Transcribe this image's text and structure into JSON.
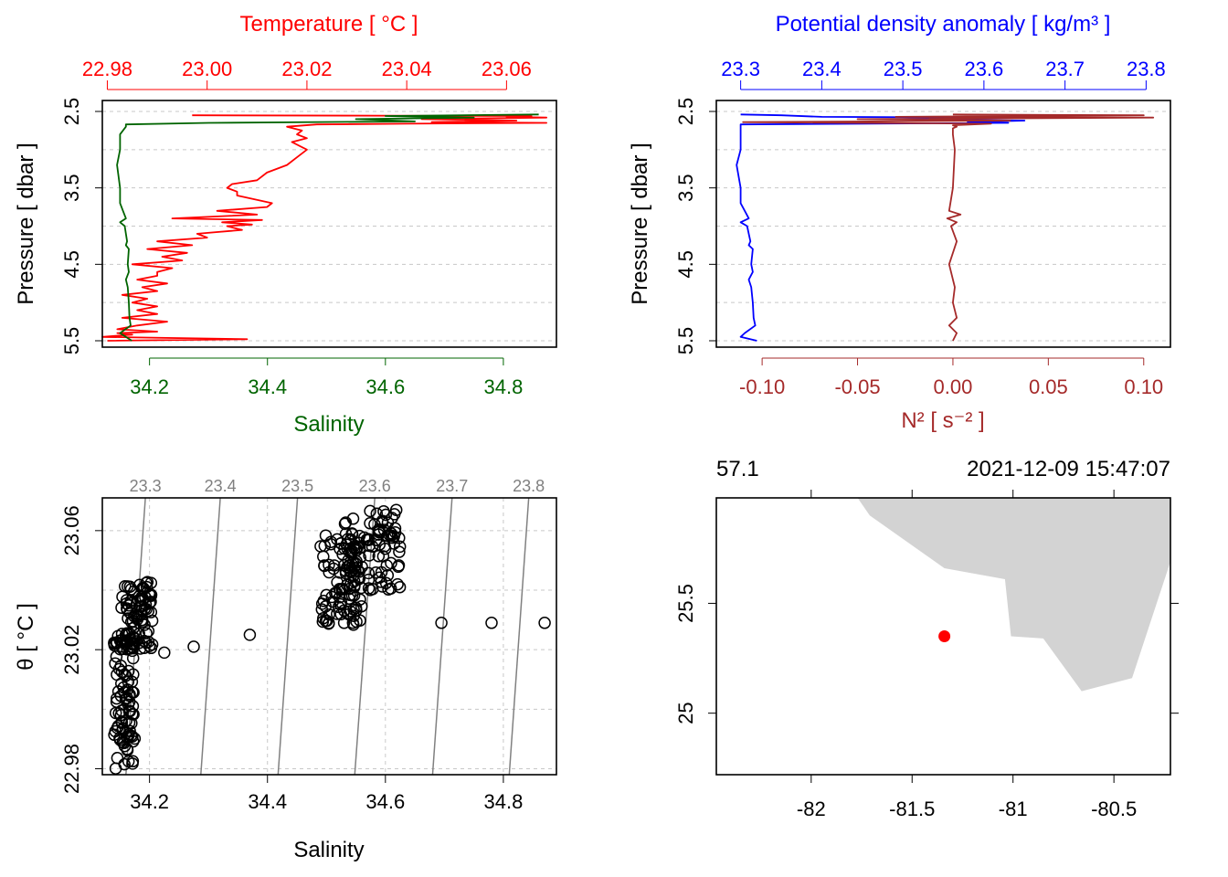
{
  "chart_data": [
    {
      "id": "ts-profile",
      "type": "line",
      "title_top": "Temperature [ °C ]",
      "xlabel_bottom": "Salinity",
      "ylabel": "Pressure [ dbar ]",
      "colors": {
        "temperature": "#ff0000",
        "salinity": "#006400",
        "grid": "#c8c8c8"
      },
      "ylim": [
        5.5,
        2.5
      ],
      "top_axis": {
        "lim": [
          22.979,
          23.07
        ],
        "ticks": [
          22.98,
          23.0,
          23.02,
          23.04,
          23.06
        ],
        "labels": [
          "22.98",
          "23.00",
          "23.02",
          "23.04",
          "23.06"
        ]
      },
      "bottom_axis": {
        "lim": [
          34.12,
          34.89
        ],
        "ticks": [
          34.2,
          34.4,
          34.6,
          34.8
        ],
        "labels": [
          "34.2",
          "34.4",
          "34.6",
          "34.8"
        ]
      },
      "yticks": [
        2.5,
        3.5,
        4.5,
        5.5
      ],
      "ytick_labels": [
        "2.5",
        "3.5",
        "4.5",
        "5.5"
      ],
      "ygrid": [
        2.5,
        3.0,
        3.5,
        4.0,
        4.5,
        5.0,
        5.5
      ],
      "series": [
        {
          "name": "Temperature",
          "axis": "top",
          "pressure": [
            2.55,
            2.56,
            2.57,
            2.58,
            2.6,
            2.62,
            2.64,
            2.65,
            2.66,
            2.67,
            2.7,
            2.75,
            2.8,
            2.85,
            2.9,
            3.0,
            3.1,
            3.2,
            3.3,
            3.4,
            3.45,
            3.5,
            3.55,
            3.6,
            3.7,
            3.75,
            3.8,
            3.85,
            3.9,
            3.92,
            3.95,
            3.98,
            4.0,
            4.05,
            4.1,
            4.15,
            4.2,
            4.25,
            4.3,
            4.35,
            4.4,
            4.45,
            4.5,
            4.55,
            4.6,
            4.65,
            4.7,
            4.75,
            4.8,
            4.85,
            4.9,
            4.95,
            5.0,
            5.05,
            5.1,
            5.15,
            5.2,
            5.25,
            5.3,
            5.35,
            5.38,
            5.4,
            5.42,
            5.45,
            5.48,
            5.5
          ],
          "values": [
            22.997,
            23.065,
            23.06,
            23.068,
            23.043,
            23.062,
            23.045,
            23.068,
            23.04,
            23.022,
            23.016,
            23.019,
            23.018,
            23.02,
            23.017,
            23.02,
            23.018,
            23.016,
            23.012,
            23.01,
            23.005,
            23.004,
            23.006,
            23.006,
            23.013,
            23.012,
            23.002,
            23.01,
            22.993,
            23.011,
            23.003,
            23.009,
            23.004,
            23.007,
            22.998,
            23.0,
            22.99,
            22.997,
            22.988,
            22.996,
            22.991,
            22.995,
            22.985,
            22.993,
            22.99,
            22.99,
            22.986,
            22.992,
            22.987,
            22.99,
            22.983,
            22.988,
            22.985,
            22.99,
            22.986,
            22.99,
            22.983,
            22.992,
            22.986,
            22.982,
            22.99,
            22.982,
            22.985,
            22.979,
            23.008,
            22.98
          ]
        },
        {
          "name": "Salinity",
          "axis": "bottom",
          "pressure": [
            2.54,
            2.56,
            2.58,
            2.6,
            2.63,
            2.65,
            2.67,
            2.7,
            2.8,
            3.0,
            3.2,
            3.5,
            3.7,
            3.8,
            3.9,
            3.95,
            4.0,
            4.1,
            4.2,
            4.25,
            4.3,
            4.5,
            4.6,
            4.7,
            4.8,
            5.0,
            5.2,
            5.3,
            5.4,
            5.5
          ],
          "values": [
            34.86,
            34.6,
            34.75,
            34.55,
            34.65,
            34.3,
            34.16,
            34.16,
            34.15,
            34.15,
            34.145,
            34.15,
            34.15,
            34.155,
            34.16,
            34.15,
            34.158,
            34.16,
            34.162,
            34.16,
            34.165,
            34.163,
            34.165,
            34.16,
            34.163,
            34.165,
            34.166,
            34.168,
            34.15,
            34.17
          ]
        }
      ]
    },
    {
      "id": "density-n2-profile",
      "type": "line",
      "title_top": "Potential density anomaly [ kg/m³ ]",
      "xlabel_bottom": "N² [ s⁻² ]",
      "ylabel": "Pressure [ dbar ]",
      "colors": {
        "density": "#0000ff",
        "n2": "#a52a2a",
        "grid": "#c8c8c8"
      },
      "ylim": [
        5.5,
        2.5
      ],
      "top_axis": {
        "lim": [
          23.27,
          23.83
        ],
        "ticks": [
          23.3,
          23.4,
          23.5,
          23.6,
          23.7,
          23.8
        ],
        "labels": [
          "23.3",
          "23.4",
          "23.5",
          "23.6",
          "23.7",
          "23.8"
        ]
      },
      "bottom_axis": {
        "lim": [
          -0.124,
          0.114
        ],
        "ticks": [
          -0.1,
          -0.05,
          0.0,
          0.05,
          0.1
        ],
        "labels": [
          "-0.10",
          "-0.05",
          "0.00",
          "0.05",
          "0.10"
        ]
      },
      "yticks": [
        2.5,
        3.5,
        4.5,
        5.5
      ],
      "ytick_labels": [
        "2.5",
        "3.5",
        "4.5",
        "5.5"
      ],
      "ygrid": [
        2.5,
        3.0,
        3.5,
        4.0,
        4.5,
        5.0,
        5.5
      ],
      "series": [
        {
          "name": "Potential density anomaly",
          "axis": "top",
          "pressure": [
            2.54,
            2.55,
            2.57,
            2.58,
            2.6,
            2.62,
            2.64,
            2.65,
            2.67,
            2.7,
            2.8,
            3.0,
            3.2,
            3.5,
            3.7,
            3.8,
            3.9,
            3.95,
            4.0,
            4.1,
            4.2,
            4.25,
            4.3,
            4.5,
            4.6,
            4.7,
            4.8,
            5.0,
            5.2,
            5.3,
            5.4,
            5.45,
            5.5
          ],
          "values": [
            23.3,
            23.35,
            23.4,
            23.6,
            23.5,
            23.65,
            23.58,
            23.63,
            23.3,
            23.3,
            23.3,
            23.3,
            23.295,
            23.3,
            23.3,
            23.305,
            23.31,
            23.3,
            23.308,
            23.31,
            23.312,
            23.31,
            23.315,
            23.313,
            23.315,
            23.31,
            23.313,
            23.315,
            23.316,
            23.318,
            23.305,
            23.3,
            23.32
          ]
        },
        {
          "name": "N²",
          "axis": "bottom",
          "pressure": [
            2.54,
            2.55,
            2.57,
            2.58,
            2.6,
            2.62,
            2.64,
            2.66,
            2.68,
            2.7,
            2.72,
            2.8,
            3.0,
            3.5,
            3.8,
            3.85,
            3.9,
            3.95,
            4.0,
            4.2,
            4.5,
            4.8,
            5.0,
            5.2,
            5.3,
            5.4,
            5.5
          ],
          "values": [
            0.0,
            0.1,
            -0.03,
            0.105,
            -0.05,
            0.03,
            -0.11,
            0.02,
            0.0,
            0.002,
            0.0,
            0.0,
            0.001,
            0.0,
            -0.002,
            0.004,
            -0.003,
            0.002,
            -0.001,
            0.002,
            -0.002,
            0.001,
            0.0,
            0.002,
            -0.002,
            0.002,
            0.0
          ]
        }
      ]
    },
    {
      "id": "ts-diagram",
      "type": "scatter",
      "xlabel": "Salinity",
      "ylabel": "θ [ °C ]",
      "colors": {
        "points": "#000000",
        "isopycnal": "#808080",
        "grid": "#c8c8c8"
      },
      "xlim": [
        34.12,
        34.89
      ],
      "ylim": [
        22.978,
        23.071
      ],
      "xticks": [
        34.2,
        34.4,
        34.6,
        34.8
      ],
      "xtick_labels": [
        "34.2",
        "34.4",
        "34.6",
        "34.8"
      ],
      "yticks": [
        22.98,
        23.02,
        23.06
      ],
      "ytick_labels": [
        "22.98",
        "23.02",
        "23.06"
      ],
      "ygrid": [
        22.98,
        23.0,
        23.02,
        23.04,
        23.06
      ],
      "isopycnals": [
        {
          "label": "23.3",
          "s_bottom": 34.16,
          "s_top": 34.193
        },
        {
          "label": "23.4",
          "s_bottom": 34.287,
          "s_top": 34.32
        },
        {
          "label": "23.5",
          "s_bottom": 34.418,
          "s_top": 34.451
        },
        {
          "label": "23.6",
          "s_bottom": 34.548,
          "s_top": 34.582
        },
        {
          "label": "23.7",
          "s_bottom": 34.68,
          "s_top": 34.713
        },
        {
          "label": "23.8",
          "s_bottom": 34.81,
          "s_top": 34.843
        }
      ],
      "clusters": [
        {
          "s": [
            34.14,
            34.175
          ],
          "t": [
            22.98,
            23.026
          ]
        },
        {
          "s": [
            34.15,
            34.205
          ],
          "t": [
            23.02,
            23.043
          ]
        },
        {
          "s": [
            34.49,
            34.56
          ],
          "t": [
            23.028,
            23.06
          ]
        },
        {
          "s": [
            34.53,
            34.625
          ],
          "t": [
            23.04,
            23.067
          ]
        }
      ],
      "outliers": {
        "s": [
          34.225,
          34.275,
          34.37,
          34.53,
          34.545,
          34.695,
          34.78,
          34.87
        ],
        "t": [
          23.019,
          23.021,
          23.025,
          23.029,
          23.029,
          23.029,
          23.029,
          23.029
        ]
      }
    },
    {
      "id": "station-map",
      "type": "scatter",
      "top_left_label": "57.1",
      "top_right_label": "2021-12-09 15:47:07",
      "colors": {
        "land": "#d3d3d3",
        "station": "#ff0000"
      },
      "xlim": [
        -82.47,
        -80.22
      ],
      "ylim": [
        24.72,
        25.98
      ],
      "xticks": [
        -82,
        -81.5,
        -81,
        -80.5
      ],
      "xtick_labels": [
        "-82",
        "-81.5",
        "-81",
        "-80.5"
      ],
      "yticks": [
        25,
        25.5
      ],
      "ytick_labels": [
        "25",
        "25.5"
      ],
      "land_polygon": {
        "lon": [
          -81.77,
          -81.71,
          -81.34,
          -81.04,
          -81.01,
          -80.85,
          -80.66,
          -80.41,
          -80.22,
          -80.22
        ],
        "lat": [
          25.98,
          25.9,
          25.66,
          25.61,
          25.35,
          25.34,
          25.1,
          25.16,
          25.69,
          25.98
        ]
      },
      "station": {
        "lon": -81.34,
        "lat": 25.35
      }
    }
  ]
}
